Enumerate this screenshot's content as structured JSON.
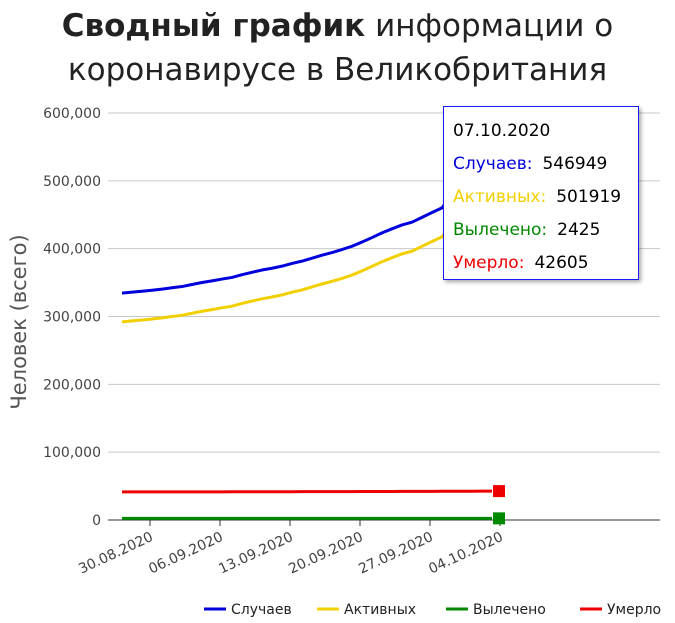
{
  "chart_data": {
    "type": "line",
    "title_bold": "Сводный график",
    "title_rest": "информации о коронавирусе в Великобритания",
    "ylabel": "Человек (всего)",
    "xlabel": "",
    "ylim": [
      0,
      600000
    ],
    "y_ticks": [
      "0",
      "100,000",
      "200,000",
      "300,000",
      "400,000",
      "500,000",
      "600,000"
    ],
    "x_start": "30.08.2020",
    "x_ticks": [
      "30.08.2020",
      "06.09.2020",
      "13.09.2020",
      "20.09.2020",
      "27.09.2020",
      "04.10.2020"
    ],
    "grid": true,
    "legend_position": "bottom-right",
    "series": [
      {
        "name": "Случаев",
        "color": "#0000dd",
        "values": [
          334467,
          335873,
          337168,
          338676,
          340411,
          342351,
          344164,
          347152,
          350100,
          352560,
          355219,
          357614,
          361677,
          365174,
          368504,
          371125,
          374228,
          378219,
          381614,
          385936,
          390358,
          394257,
          398625,
          403551,
          409729,
          416363,
          423236,
          429277,
          434969,
          439013,
          446156,
          453264,
          460178,
          480017,
          502978,
          515571,
          530113,
          546949
        ]
      },
      {
        "name": "Активных",
        "color": "#f2d000",
        "values": [
          292073,
          293477,
          294753,
          296264,
          298011,
          299948,
          301761,
          304750,
          307705,
          310161,
          312823,
          315212,
          319273,
          322769,
          326101,
          328717,
          331819,
          335808,
          339195,
          343510,
          347922,
          351815,
          356175,
          361088,
          367227,
          373844,
          380665,
          386692,
          392334,
          396315,
          403446,
          410540,
          417425,
          437211,
          460142,
          472681,
          487131,
          501919
        ]
      },
      {
        "name": "Вылечено",
        "color": "#008800",
        "values": [
          2325,
          2327,
          2330,
          2332,
          2334,
          2336,
          2338,
          2340,
          2342,
          2344,
          2346,
          2348,
          2350,
          2352,
          2354,
          2356,
          2358,
          2360,
          2362,
          2364,
          2366,
          2368,
          2370,
          2372,
          2374,
          2376,
          2378,
          2380,
          2382,
          2384,
          2386,
          2388,
          2390,
          2395,
          2400,
          2410,
          2418,
          2425
        ]
      },
      {
        "name": "Умерло",
        "color": "#ee0000",
        "values": [
          41499,
          41501,
          41504,
          41506,
          41509,
          41513,
          41513,
          41537,
          41549,
          41551,
          41554,
          41586,
          41603,
          41623,
          41664,
          41684,
          41705,
          41732,
          41759,
          41788,
          41825,
          41862,
          41877,
          41902,
          41936,
          41971,
          42001,
          42072,
          42143,
          42202,
          42233,
          42268,
          42317,
          42370,
          42445,
          42475,
          42559,
          42605
        ]
      }
    ]
  },
  "tooltip": {
    "date": "07.10.2020",
    "rows": [
      {
        "label": "Случаев:",
        "value": "546949"
      },
      {
        "label": "Активных:",
        "value": "501919"
      },
      {
        "label": "Вылечено:",
        "value": "2425"
      },
      {
        "label": "Умерло:",
        "value": "42605"
      }
    ]
  }
}
